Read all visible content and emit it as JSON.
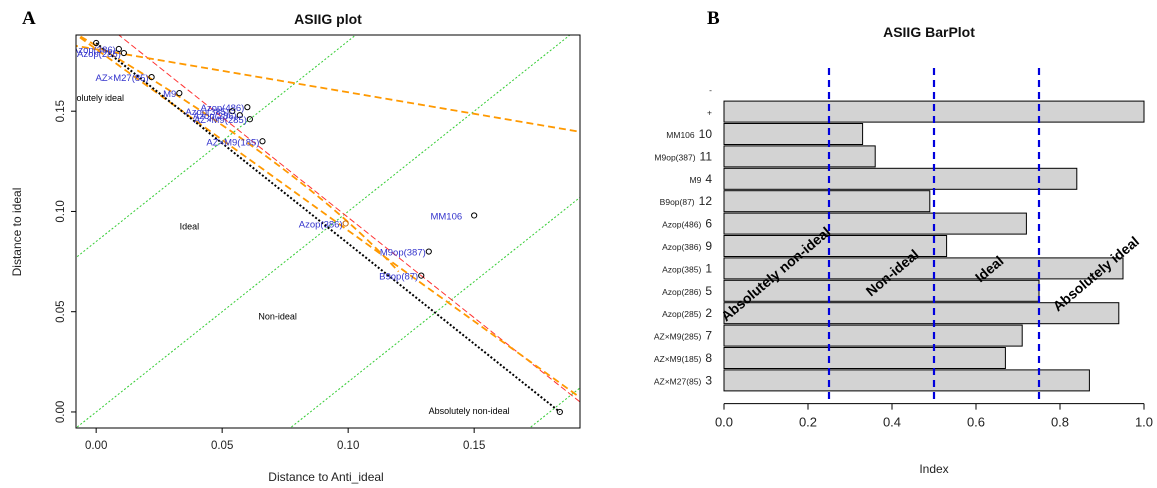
{
  "chart_data": [
    {
      "panel_label": "A",
      "type": "scatter",
      "title": "ASIIG plot",
      "xlabel": "Distance to Anti_ideal",
      "ylabel": "Distance to ideal",
      "xlim": [
        -0.008,
        0.192
      ],
      "ylim": [
        -0.008,
        0.188
      ],
      "x_ticks": [
        "0.00",
        "0.05",
        "0.10",
        "0.15"
      ],
      "y_ticks": [
        "0.00",
        "0.05",
        "0.10",
        "0.15"
      ],
      "points": [
        {
          "label": "MM106",
          "x": 0.15,
          "y": 0.098
        },
        {
          "label": "M9op(387)",
          "x": 0.132,
          "y": 0.08
        },
        {
          "label": "B9op(87)",
          "x": 0.129,
          "y": 0.068
        },
        {
          "label": "Azop(386)",
          "x": 0.099,
          "y": 0.094
        },
        {
          "label": "Azop(486)",
          "x": 0.06,
          "y": 0.152
        },
        {
          "label": "Azop(385)",
          "x": 0.054,
          "y": 0.15
        },
        {
          "label": "Azop(286)",
          "x": 0.057,
          "y": 0.148
        },
        {
          "label": "AZ×M9(285)",
          "x": 0.061,
          "y": 0.146
        },
        {
          "label": "AZ×M9(185)",
          "x": 0.066,
          "y": 0.135
        },
        {
          "label": "M9",
          "x": 0.033,
          "y": 0.159
        },
        {
          "label": "AZ×M27(85)",
          "x": 0.022,
          "y": 0.167
        },
        {
          "label": "Azop(285)",
          "x": 0.011,
          "y": 0.179
        },
        {
          "label": "Azop(386)",
          "x": 0.009,
          "y": 0.181
        },
        {
          "label": "",
          "x": 0.184,
          "y": 0.0
        },
        {
          "label": "",
          "x": 0.0,
          "y": 0.184
        }
      ],
      "region_labels": [
        "Absolutely ideal",
        "Ideal",
        "Non-ideal",
        "Absolutely non-ideal"
      ],
      "colors": {
        "points": "#000000",
        "labels": "#3333cc",
        "ideal_line": "#000000",
        "fit_lines": "#ff9900",
        "reference_line": "#ff3333",
        "guides": "#33cc33"
      }
    },
    {
      "panel_label": "B",
      "type": "bar",
      "orientation": "horizontal",
      "title": "ASIIG BarPlot",
      "xlabel": "Index",
      "ylabel": "",
      "xlim": [
        0,
        1
      ],
      "x_ticks": [
        "0.0",
        "0.2",
        "0.4",
        "0.6",
        "0.8",
        "1.0"
      ],
      "categories": [
        {
          "name": "-",
          "rank": "",
          "value": 0.0
        },
        {
          "name": "+",
          "rank": "",
          "value": 1.0
        },
        {
          "name": "MM106",
          "rank": "10",
          "value": 0.33
        },
        {
          "name": "M9op(387)",
          "rank": "11",
          "value": 0.36
        },
        {
          "name": "M9",
          "rank": "4",
          "value": 0.84
        },
        {
          "name": "B9op(87)",
          "rank": "12",
          "value": 0.49
        },
        {
          "name": "Azop(486)",
          "rank": "6",
          "value": 0.72
        },
        {
          "name": "Azop(386)",
          "rank": "9",
          "value": 0.53
        },
        {
          "name": "Azop(385)",
          "rank": "1",
          "value": 0.95
        },
        {
          "name": "Azop(286)",
          "rank": "5",
          "value": 0.75
        },
        {
          "name": "Azop(285)",
          "rank": "2",
          "value": 0.94
        },
        {
          "name": "AZ×M9(285)",
          "rank": "7",
          "value": 0.71
        },
        {
          "name": "AZ×M9(185)",
          "rank": "8",
          "value": 0.67
        },
        {
          "name": "AZ×M27(85)",
          "rank": "3",
          "value": 0.87
        }
      ],
      "thresholds": [
        0.25,
        0.5,
        0.75
      ],
      "region_labels": [
        "Absolutely non-ideal",
        "Non-ideal",
        "Ideal",
        "Absolutely ideal"
      ],
      "colors": {
        "bars": "#d3d3d3",
        "bar_border": "#000000",
        "thresholds": "#0000dd"
      }
    }
  ]
}
